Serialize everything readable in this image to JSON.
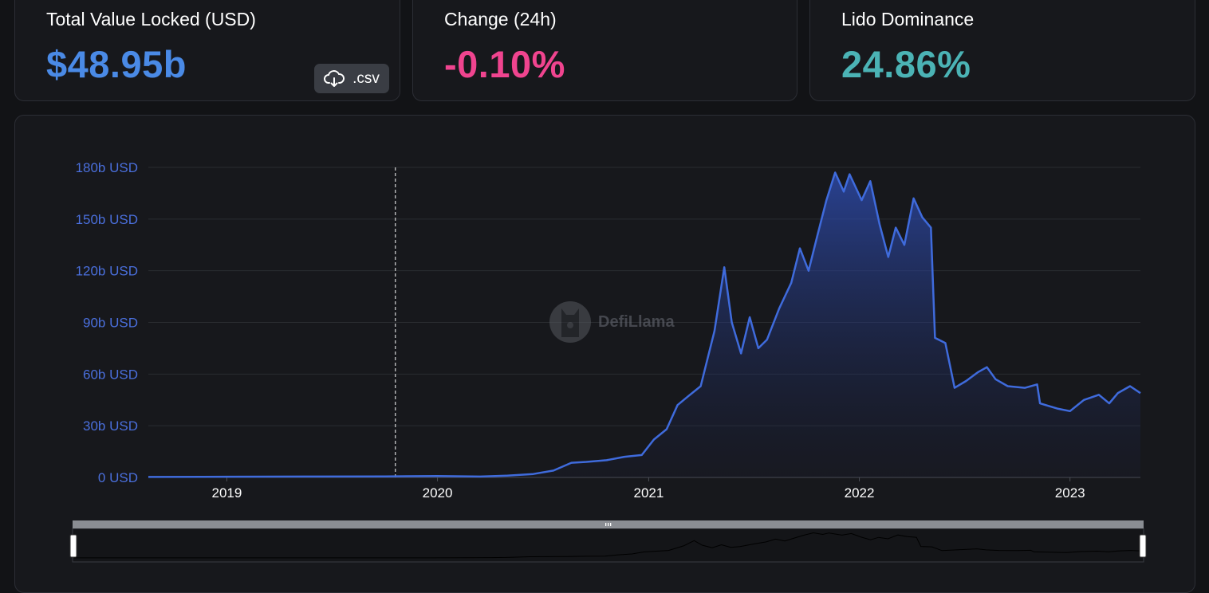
{
  "stats": {
    "tvl": {
      "label": "Total Value Locked (USD)",
      "value": "$48.95b"
    },
    "change": {
      "label": "Change (24h)",
      "value": "-0.10%"
    },
    "dominance": {
      "label": "Lido Dominance",
      "value": "24.86%"
    }
  },
  "csv_button": {
    "label": ".csv",
    "icon": "cloud-download-icon"
  },
  "watermark": {
    "text": "DefiLlama",
    "icon": "llama-logo-icon"
  },
  "colors": {
    "line": "#3f6bdc",
    "tvl": "#4a8ae6",
    "change": "#f0448f",
    "dominance": "#4bb3b5",
    "axis_label": "#4a6fdc"
  },
  "chart_data": {
    "type": "area",
    "title": "",
    "xlabel": "",
    "ylabel": "",
    "y_ticks": [
      "0 USD",
      "30b USD",
      "60b USD",
      "90b USD",
      "120b USD",
      "150b USD",
      "180b USD"
    ],
    "x_ticks": [
      "2019",
      "2020",
      "2021",
      "2022",
      "2023"
    ],
    "ylim": [
      0,
      180
    ],
    "y_unit": "b USD",
    "xlim": [
      "2018-08-18",
      "2023-05-03"
    ],
    "grid": true,
    "marker_line_date": "2019-10-20",
    "series": [
      {
        "points": [
          [
            "2018-08-18",
            0.3
          ],
          [
            "2019-01-01",
            0.4
          ],
          [
            "2019-06-01",
            0.5
          ],
          [
            "2019-10-01",
            0.6
          ],
          [
            "2020-01-01",
            0.8
          ],
          [
            "2020-03-15",
            0.5
          ],
          [
            "2020-05-01",
            1.0
          ],
          [
            "2020-06-15",
            2.0
          ],
          [
            "2020-07-20",
            4.0
          ],
          [
            "2020-08-20",
            8.5
          ],
          [
            "2020-09-15",
            9.0
          ],
          [
            "2020-10-20",
            10.0
          ],
          [
            "2020-11-20",
            12.0
          ],
          [
            "2020-12-20",
            13.0
          ],
          [
            "2021-01-10",
            22.0
          ],
          [
            "2021-02-01",
            28.0
          ],
          [
            "2021-02-20",
            42.0
          ],
          [
            "2021-03-10",
            47.0
          ],
          [
            "2021-04-01",
            53.0
          ],
          [
            "2021-04-25",
            85.0
          ],
          [
            "2021-05-12",
            122.0
          ],
          [
            "2021-05-25",
            90.0
          ],
          [
            "2021-06-10",
            72.0
          ],
          [
            "2021-06-25",
            93.0
          ],
          [
            "2021-07-10",
            75.0
          ],
          [
            "2021-07-25",
            80.0
          ],
          [
            "2021-08-15",
            98.0
          ],
          [
            "2021-09-05",
            113.0
          ],
          [
            "2021-09-20",
            133.0
          ],
          [
            "2021-10-05",
            120.0
          ],
          [
            "2021-10-20",
            140.0
          ],
          [
            "2021-11-05",
            161.0
          ],
          [
            "2021-11-20",
            177.0
          ],
          [
            "2021-12-05",
            166.0
          ],
          [
            "2021-12-15",
            176.0
          ],
          [
            "2022-01-05",
            161.0
          ],
          [
            "2022-01-20",
            172.0
          ],
          [
            "2022-02-05",
            147.0
          ],
          [
            "2022-02-20",
            128.0
          ],
          [
            "2022-03-05",
            145.0
          ],
          [
            "2022-03-20",
            135.0
          ],
          [
            "2022-04-05",
            162.0
          ],
          [
            "2022-04-20",
            151.0
          ],
          [
            "2022-05-05",
            145.0
          ],
          [
            "2022-05-12",
            81.0
          ],
          [
            "2022-05-30",
            78.0
          ],
          [
            "2022-06-15",
            52.0
          ],
          [
            "2022-07-05",
            56.0
          ],
          [
            "2022-07-25",
            61.0
          ],
          [
            "2022-08-10",
            64.0
          ],
          [
            "2022-08-25",
            57.0
          ],
          [
            "2022-09-15",
            53.0
          ],
          [
            "2022-10-15",
            52.0
          ],
          [
            "2022-11-05",
            54.0
          ],
          [
            "2022-11-10",
            43.0
          ],
          [
            "2022-12-10",
            40.0
          ],
          [
            "2023-01-01",
            38.5
          ],
          [
            "2023-01-25",
            45.0
          ],
          [
            "2023-02-20",
            48.0
          ],
          [
            "2023-03-10",
            43.0
          ],
          [
            "2023-03-25",
            49.0
          ],
          [
            "2023-04-15",
            53.0
          ],
          [
            "2023-05-03",
            48.95
          ]
        ]
      }
    ]
  }
}
